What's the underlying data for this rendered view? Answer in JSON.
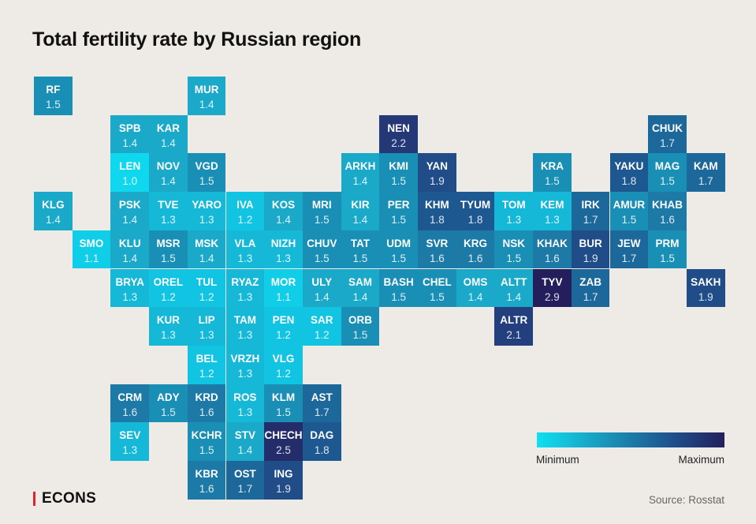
{
  "header": {
    "title": "Total fertility rate by Russian region"
  },
  "legend": {
    "min_label": "Minimum",
    "max_label": "Maximum",
    "colors": [
      "#0fe0f2",
      "#1a8fb5",
      "#1d5590",
      "#241f5c"
    ]
  },
  "footer": {
    "logo": "ECONS",
    "logo_accent": "#e0242a",
    "source": "Source: Rosstat"
  },
  "chart_data": {
    "type": "heatmap",
    "title": "Total fertility rate by Russian region",
    "subtype": "tile-grid-map",
    "color_scale": {
      "min_value": 1.0,
      "max_value": 2.9,
      "min_label": "Minimum",
      "max_label": "Maximum"
    },
    "tiles": [
      {
        "code": "RF",
        "value": 1.5,
        "row": 0,
        "col": 0
      },
      {
        "code": "MUR",
        "value": 1.4,
        "row": 0,
        "col": 4
      },
      {
        "code": "SPB",
        "value": 1.4,
        "row": 1,
        "col": 2
      },
      {
        "code": "KAR",
        "value": 1.4,
        "row": 1,
        "col": 3
      },
      {
        "code": "NEN",
        "value": 2.2,
        "row": 1,
        "col": 9
      },
      {
        "code": "CHUK",
        "value": 1.7,
        "row": 1,
        "col": 16
      },
      {
        "code": "LEN",
        "value": 1.0,
        "row": 2,
        "col": 2
      },
      {
        "code": "NOV",
        "value": 1.4,
        "row": 2,
        "col": 3
      },
      {
        "code": "VGD",
        "value": 1.5,
        "row": 2,
        "col": 4
      },
      {
        "code": "ARKH",
        "value": 1.4,
        "row": 2,
        "col": 8
      },
      {
        "code": "KMI",
        "value": 1.5,
        "row": 2,
        "col": 9
      },
      {
        "code": "YAN",
        "value": 1.9,
        "row": 2,
        "col": 10
      },
      {
        "code": "KRA",
        "value": 1.5,
        "row": 2,
        "col": 13
      },
      {
        "code": "YAKU",
        "value": 1.8,
        "row": 2,
        "col": 15
      },
      {
        "code": "MAG",
        "value": 1.5,
        "row": 2,
        "col": 16
      },
      {
        "code": "KAM",
        "value": 1.7,
        "row": 2,
        "col": 17
      },
      {
        "code": "KLG",
        "value": 1.4,
        "row": 3,
        "col": 0
      },
      {
        "code": "PSK",
        "value": 1.4,
        "row": 3,
        "col": 2
      },
      {
        "code": "TVE",
        "value": 1.3,
        "row": 3,
        "col": 3
      },
      {
        "code": "YARO",
        "value": 1.3,
        "row": 3,
        "col": 4
      },
      {
        "code": "IVA",
        "value": 1.2,
        "row": 3,
        "col": 5
      },
      {
        "code": "KOS",
        "value": 1.4,
        "row": 3,
        "col": 6
      },
      {
        "code": "MRI",
        "value": 1.5,
        "row": 3,
        "col": 7
      },
      {
        "code": "KIR",
        "value": 1.4,
        "row": 3,
        "col": 8
      },
      {
        "code": "PER",
        "value": 1.5,
        "row": 3,
        "col": 9
      },
      {
        "code": "KHM",
        "value": 1.8,
        "row": 3,
        "col": 10
      },
      {
        "code": "TYUM",
        "value": 1.8,
        "row": 3,
        "col": 11
      },
      {
        "code": "TOM",
        "value": 1.3,
        "row": 3,
        "col": 12
      },
      {
        "code": "KEM",
        "value": 1.3,
        "row": 3,
        "col": 13
      },
      {
        "code": "IRK",
        "value": 1.7,
        "row": 3,
        "col": 14
      },
      {
        "code": "AMUR",
        "value": 1.5,
        "row": 3,
        "col": 15
      },
      {
        "code": "KHAB",
        "value": 1.6,
        "row": 3,
        "col": 16
      },
      {
        "code": "SMO",
        "value": 1.1,
        "row": 4,
        "col": 1
      },
      {
        "code": "KLU",
        "value": 1.4,
        "row": 4,
        "col": 2
      },
      {
        "code": "MSR",
        "value": 1.5,
        "row": 4,
        "col": 3
      },
      {
        "code": "MSK",
        "value": 1.4,
        "row": 4,
        "col": 4
      },
      {
        "code": "VLA",
        "value": 1.3,
        "row": 4,
        "col": 5
      },
      {
        "code": "NIZH",
        "value": 1.3,
        "row": 4,
        "col": 6
      },
      {
        "code": "CHUV",
        "value": 1.5,
        "row": 4,
        "col": 7
      },
      {
        "code": "TAT",
        "value": 1.5,
        "row": 4,
        "col": 8
      },
      {
        "code": "UDM",
        "value": 1.5,
        "row": 4,
        "col": 9
      },
      {
        "code": "SVR",
        "value": 1.6,
        "row": 4,
        "col": 10
      },
      {
        "code": "KRG",
        "value": 1.6,
        "row": 4,
        "col": 11
      },
      {
        "code": "NSK",
        "value": 1.5,
        "row": 4,
        "col": 12
      },
      {
        "code": "KHAK",
        "value": 1.6,
        "row": 4,
        "col": 13
      },
      {
        "code": "BUR",
        "value": 1.9,
        "row": 4,
        "col": 14
      },
      {
        "code": "JEW",
        "value": 1.7,
        "row": 4,
        "col": 15
      },
      {
        "code": "PRM",
        "value": 1.5,
        "row": 4,
        "col": 16
      },
      {
        "code": "BRYA",
        "value": 1.3,
        "row": 5,
        "col": 2
      },
      {
        "code": "OREL",
        "value": 1.2,
        "row": 5,
        "col": 3
      },
      {
        "code": "TUL",
        "value": 1.2,
        "row": 5,
        "col": 4
      },
      {
        "code": "RYAZ",
        "value": 1.3,
        "row": 5,
        "col": 5
      },
      {
        "code": "MOR",
        "value": 1.1,
        "row": 5,
        "col": 6
      },
      {
        "code": "ULY",
        "value": 1.4,
        "row": 5,
        "col": 7
      },
      {
        "code": "SAM",
        "value": 1.4,
        "row": 5,
        "col": 8
      },
      {
        "code": "BASH",
        "value": 1.5,
        "row": 5,
        "col": 9
      },
      {
        "code": "CHEL",
        "value": 1.5,
        "row": 5,
        "col": 10
      },
      {
        "code": "OMS",
        "value": 1.4,
        "row": 5,
        "col": 11
      },
      {
        "code": "ALTT",
        "value": 1.4,
        "row": 5,
        "col": 12
      },
      {
        "code": "TYV",
        "value": 2.9,
        "row": 5,
        "col": 13
      },
      {
        "code": "ZAB",
        "value": 1.7,
        "row": 5,
        "col": 14
      },
      {
        "code": "SAKH",
        "value": 1.9,
        "row": 5,
        "col": 17
      },
      {
        "code": "KUR",
        "value": 1.3,
        "row": 6,
        "col": 3
      },
      {
        "code": "LIP",
        "value": 1.3,
        "row": 6,
        "col": 4
      },
      {
        "code": "TAM",
        "value": 1.3,
        "row": 6,
        "col": 5
      },
      {
        "code": "PEN",
        "value": 1.2,
        "row": 6,
        "col": 6
      },
      {
        "code": "SAR",
        "value": 1.2,
        "row": 6,
        "col": 7
      },
      {
        "code": "ORB",
        "value": 1.5,
        "row": 6,
        "col": 8
      },
      {
        "code": "ALTR",
        "value": 2.1,
        "row": 6,
        "col": 12
      },
      {
        "code": "BEL",
        "value": 1.2,
        "row": 7,
        "col": 4
      },
      {
        "code": "VRZH",
        "value": 1.3,
        "row": 7,
        "col": 5
      },
      {
        "code": "VLG",
        "value": 1.2,
        "row": 7,
        "col": 6
      },
      {
        "code": "CRM",
        "value": 1.6,
        "row": 8,
        "col": 2
      },
      {
        "code": "ADY",
        "value": 1.5,
        "row": 8,
        "col": 3
      },
      {
        "code": "KRD",
        "value": 1.6,
        "row": 8,
        "col": 4
      },
      {
        "code": "ROS",
        "value": 1.3,
        "row": 8,
        "col": 5
      },
      {
        "code": "KLM",
        "value": 1.5,
        "row": 8,
        "col": 6
      },
      {
        "code": "AST",
        "value": 1.7,
        "row": 8,
        "col": 7
      },
      {
        "code": "SEV",
        "value": 1.3,
        "row": 9,
        "col": 2
      },
      {
        "code": "KCHR",
        "value": 1.5,
        "row": 9,
        "col": 4
      },
      {
        "code": "STV",
        "value": 1.4,
        "row": 9,
        "col": 5
      },
      {
        "code": "CHECH",
        "value": 2.5,
        "row": 9,
        "col": 6
      },
      {
        "code": "DAG",
        "value": 1.8,
        "row": 9,
        "col": 7
      },
      {
        "code": "KBR",
        "value": 1.6,
        "row": 10,
        "col": 4
      },
      {
        "code": "OST",
        "value": 1.7,
        "row": 10,
        "col": 5
      },
      {
        "code": "ING",
        "value": 1.9,
        "row": 10,
        "col": 6
      }
    ]
  }
}
